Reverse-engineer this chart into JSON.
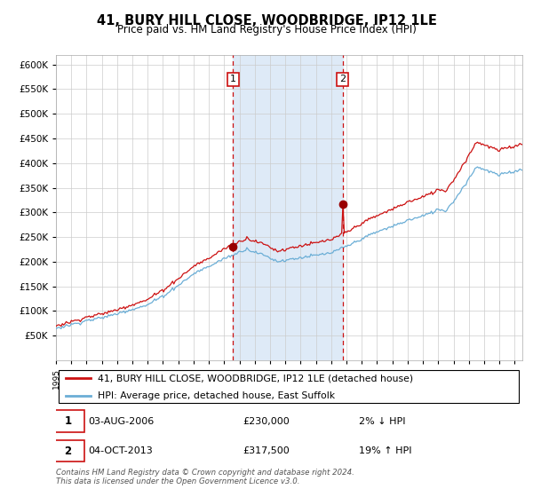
{
  "title": "41, BURY HILL CLOSE, WOODBRIDGE, IP12 1LE",
  "subtitle": "Price paid vs. HM Land Registry's House Price Index (HPI)",
  "ylim": [
    0,
    620000
  ],
  "yticks": [
    50000,
    100000,
    150000,
    200000,
    250000,
    300000,
    350000,
    400000,
    450000,
    500000,
    550000,
    600000
  ],
  "hpi_color": "#6baed6",
  "price_color": "#cc1111",
  "dot_color": "#990000",
  "vline_color": "#cc1111",
  "shade_color": "#deeaf7",
  "purchase1_date": 2006.58,
  "purchase1_price": 230000,
  "purchase2_date": 2013.75,
  "purchase2_price": 317500,
  "legend_entry1": "41, BURY HILL CLOSE, WOODBRIDGE, IP12 1LE (detached house)",
  "legend_entry2": "HPI: Average price, detached house, East Suffolk",
  "note1_date": "03-AUG-2006",
  "note1_price": "£230,000",
  "note1_hpi": "2% ↓ HPI",
  "note2_date": "04-OCT-2013",
  "note2_price": "£317,500",
  "note2_hpi": "19% ↑ HPI",
  "footer": "Contains HM Land Registry data © Crown copyright and database right 2024.\nThis data is licensed under the Open Government Licence v3.0.",
  "xstart": 1995,
  "xend": 2025
}
